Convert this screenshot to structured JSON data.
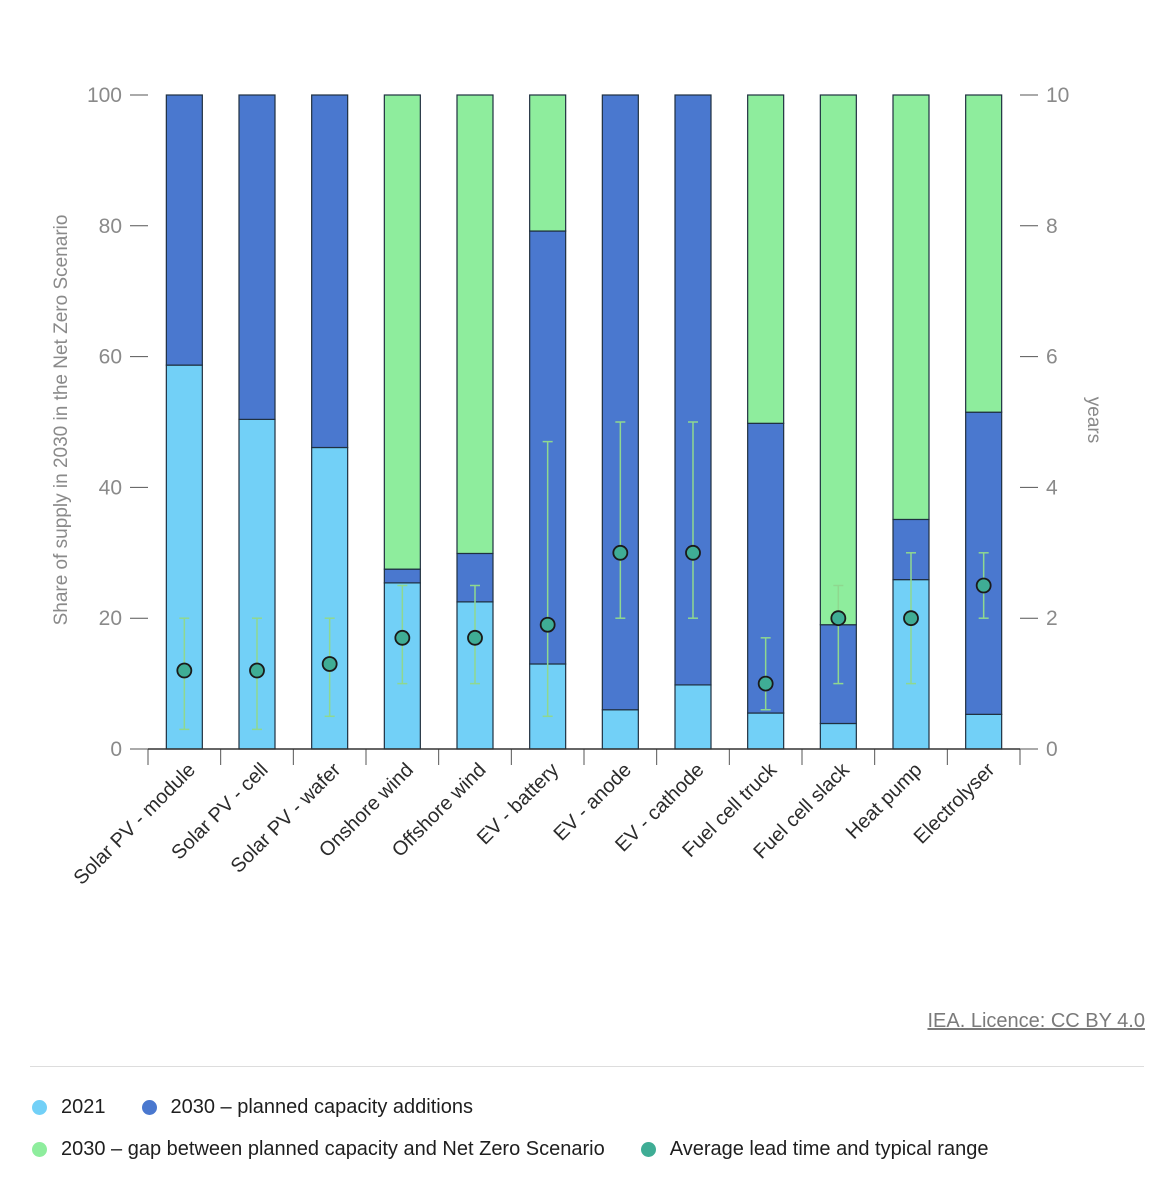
{
  "chart_data": {
    "type": "bar",
    "stacked": true,
    "categories": [
      "Solar PV - module",
      "Solar PV - cell",
      "Solar PV - wafer",
      "Onshore wind",
      "Offshore wind",
      "EV - battery",
      "EV - anode",
      "EV - cathode",
      "Fuel cell truck",
      "Fuel cell slack",
      "Heat pump",
      "Electrolyser"
    ],
    "series": [
      {
        "name": "2021",
        "color": "#72d0f7",
        "values": [
          58.7,
          50.4,
          46.1,
          25.4,
          22.5,
          13.0,
          6.0,
          9.8,
          5.5,
          3.9,
          25.9,
          5.3
        ]
      },
      {
        "name": "2030 – planned capacity additions",
        "color": "#4a78cf",
        "values": [
          41.3,
          49.6,
          53.9,
          2.1,
          7.4,
          66.2,
          94.0,
          90.2,
          44.3,
          15.1,
          9.2,
          46.2
        ]
      },
      {
        "name": "2030 – gap between planned capacity and Net Zero Scenario",
        "color": "#8eed9d",
        "values": [
          0,
          0,
          0,
          72.5,
          70.1,
          20.8,
          0,
          0,
          50.2,
          81.0,
          64.9,
          48.5
        ]
      }
    ],
    "lead_time": {
      "name": "Average lead time and typical range",
      "color": "#3fad95",
      "avg": [
        1.2,
        1.2,
        1.3,
        1.7,
        1.7,
        1.9,
        3.0,
        3.0,
        1.0,
        2.0,
        2.0,
        2.5
      ],
      "low": [
        0.3,
        0.3,
        0.5,
        1.0,
        1.0,
        0.5,
        2.0,
        2.0,
        0.6,
        1.0,
        1.0,
        2.0
      ],
      "high": [
        2.0,
        2.0,
        2.0,
        2.5,
        2.5,
        4.7,
        5.0,
        5.0,
        1.7,
        2.5,
        3.0,
        3.0
      ]
    },
    "ylabel": "Share of supply in 2030 in the Net Zero Scenario",
    "y2label": "years",
    "ylim": [
      0,
      100
    ],
    "y2lim": [
      0,
      10
    ],
    "yticks": [
      "0",
      "20",
      "40",
      "60",
      "80",
      "100"
    ],
    "y2ticks": [
      "0",
      "2",
      "4",
      "6",
      "8",
      "10"
    ],
    "grid": false,
    "legend_position": "bottom"
  },
  "source": "IEA. Licence: CC BY 4.0",
  "legend": [
    {
      "label": "2021",
      "color": "#72d0f7"
    },
    {
      "label": "2030 – planned capacity additions",
      "color": "#4a78cf"
    },
    {
      "label": "2030 – gap between planned capacity and Net Zero Scenario",
      "color": "#8eed9d"
    },
    {
      "label": "Average lead time and typical range",
      "color": "#3fad95"
    }
  ]
}
